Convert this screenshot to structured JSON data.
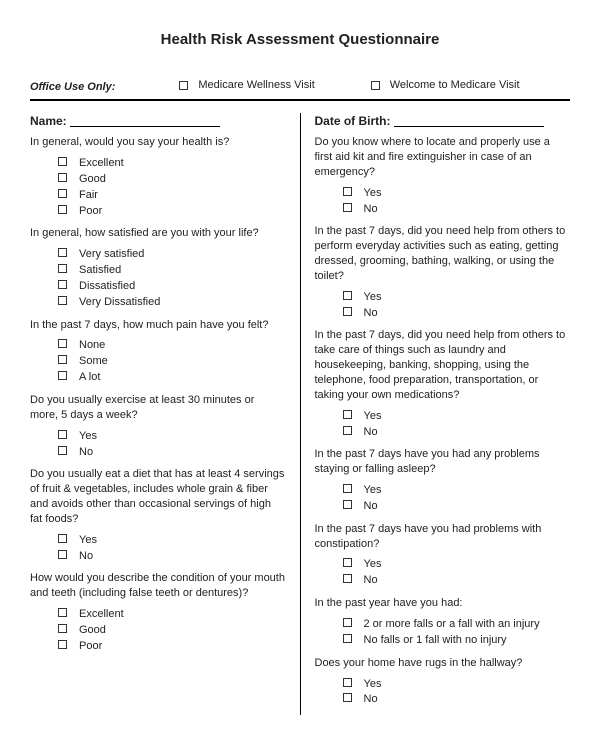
{
  "title": "Health Risk Assessment Questionnaire",
  "office": {
    "label": "Office Use Only:",
    "opt1": "Medicare Wellness Visit",
    "opt2": "Welcome to Medicare Visit"
  },
  "fields": {
    "name_label": "Name:",
    "dob_label": "Date of Birth:"
  },
  "left": [
    {
      "q": "In general, would you say your health is?",
      "opts": [
        "Excellent",
        "Good",
        "Fair",
        "Poor"
      ]
    },
    {
      "q": "In general, how satisfied are you with your life?",
      "opts": [
        "Very satisfied",
        "Satisfied",
        "Dissatisfied",
        "Very Dissatisfied"
      ]
    },
    {
      "q": "In the past 7 days, how much pain have you felt?",
      "opts": [
        "None",
        "Some",
        "A lot"
      ]
    },
    {
      "q": "Do you usually exercise at least 30 minutes or more, 5 days a week?",
      "opts": [
        "Yes",
        "No"
      ]
    },
    {
      "q": "Do you usually eat a diet that has at least 4 servings of fruit & vegetables, includes whole grain & fiber and avoids other than occasional servings of high fat foods?",
      "opts": [
        "Yes",
        "No"
      ]
    },
    {
      "q": "How would you describe the condition of your mouth and teeth (including false teeth or dentures)?",
      "opts": [
        "Excellent",
        "Good",
        "Poor"
      ]
    }
  ],
  "right": [
    {
      "q": "Do you know where to locate and properly use a first aid kit and fire extinguisher in case of an emergency?",
      "opts": [
        "Yes",
        "No"
      ]
    },
    {
      "q": "In the past 7 days, did you need help from others to perform everyday activities such as eating, getting dressed, grooming, bathing, walking, or using the toilet?",
      "opts": [
        "Yes",
        "No"
      ]
    },
    {
      "q": "In the past 7 days, did you need help from others to take care of things such as laundry and housekeeping, banking, shopping, using the telephone, food preparation, transportation, or taking your own medications?",
      "opts": [
        "Yes",
        "No"
      ]
    },
    {
      "q": "In the past 7 days have you had any problems staying or falling asleep?",
      "opts": [
        "Yes",
        "No"
      ]
    },
    {
      "q": "In the past 7 days have you had problems with constipation?",
      "opts": [
        "Yes",
        "No"
      ]
    },
    {
      "q": "In the past year have you had:",
      "opts": [
        "2 or more falls or a fall with an injury",
        "No falls or 1 fall with no injury"
      ]
    },
    {
      "q": "Does your home have rugs in the hallway?",
      "opts": [
        "Yes",
        "No"
      ]
    }
  ]
}
